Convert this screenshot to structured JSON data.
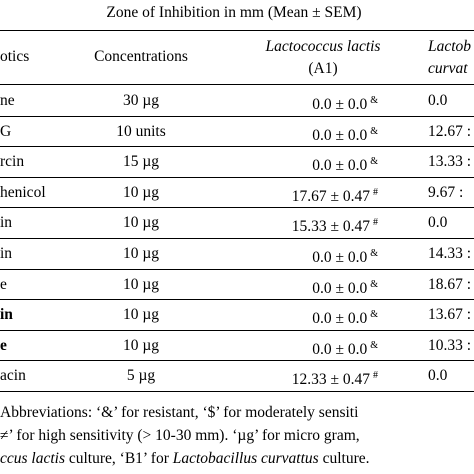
{
  "header": {
    "group_title": "Zone of Inhibition in mm (Mean ± SEM)",
    "col_antibiotics": "otics",
    "col_concentrations": "Concentrations",
    "col_a1_name": "Lactococcus lactis",
    "col_a1_code": "(A1)",
    "col_b1_name_line1": "Lactob",
    "col_b1_name_line2": "curvat"
  },
  "rows": [
    {
      "antibiotic": "ne",
      "concentration": "30 µg",
      "a1": "0.0 ± 0.0",
      "a1_mark": "&",
      "b1": "0.0",
      "bold": false
    },
    {
      "antibiotic": "G",
      "concentration": "10 units",
      "a1": "0.0 ± 0.0",
      "a1_mark": "&",
      "b1": "12.67 :",
      "bold": false
    },
    {
      "antibiotic": "rcin",
      "concentration": "15 µg",
      "a1": "0.0 ± 0.0",
      "a1_mark": "&",
      "b1": "13.33 :",
      "bold": false
    },
    {
      "antibiotic": "henicol",
      "concentration": "10 µg",
      "a1": "17.67 ± 0.47",
      "a1_mark": "#",
      "b1": "9.67 :",
      "bold": false
    },
    {
      "antibiotic": "in",
      "concentration": "10 µg",
      "a1": "15.33 ± 0.47",
      "a1_mark": "#",
      "b1": "0.0",
      "bold": false
    },
    {
      "antibiotic": "in",
      "concentration": "10 µg",
      "a1": "0.0 ± 0.0",
      "a1_mark": "&",
      "b1": "14.33 :",
      "bold": false
    },
    {
      "antibiotic": "e",
      "concentration": "10 µg",
      "a1": "0.0 ± 0.0",
      "a1_mark": "&",
      "b1": "18.67 :",
      "bold": false
    },
    {
      "antibiotic": "in",
      "concentration": "10 µg",
      "a1": "0.0 ± 0.0",
      "a1_mark": "&",
      "b1": "13.67 :",
      "bold": true
    },
    {
      "antibiotic": "e",
      "concentration": "10 µg",
      "a1": "0.0 ± 0.0",
      "a1_mark": "&",
      "b1": "10.33 :",
      "bold": true
    },
    {
      "antibiotic": "acin",
      "concentration": "5 µg",
      "a1": "12.33 ± 0.47",
      "a1_mark": "#",
      "b1": "0.0",
      "bold": false
    }
  ],
  "footnote": {
    "line1": "Abbreviations: ‘&’ for resistant, ‘$’ for moderately sensiti",
    "line2": "’ for high sensitivity (> 10-30 mm). ‘µg’ for micro gram,",
    "line3_italic": "ccus lactis",
    "line3_rest": " culture, ‘B1’ for ",
    "line3_italic2": "Lactobacillus curvattus",
    "line3_end": " culture."
  }
}
